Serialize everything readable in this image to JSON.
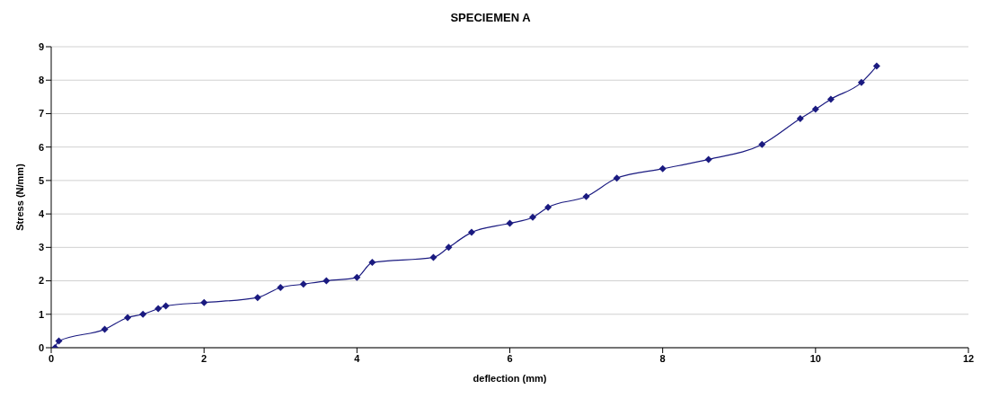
{
  "chart_data": {
    "type": "line",
    "title": "SPECIEMEN A",
    "xlabel": "deflection (mm)",
    "ylabel": "Stress (N/mm)",
    "x": [
      0.05,
      0.1,
      0.7,
      1.0,
      1.2,
      1.4,
      1.5,
      2.0,
      2.7,
      3.0,
      3.3,
      3.6,
      4.0,
      4.2,
      5.0,
      5.2,
      5.5,
      6.0,
      6.3,
      6.5,
      7.0,
      7.4,
      8.0,
      8.6,
      9.3,
      9.8,
      10.0,
      10.2,
      10.6,
      10.8
    ],
    "series": [
      {
        "color": "#1a1a80",
        "values": [
          0,
          0.2,
          0.55,
          0.9,
          1.0,
          1.17,
          1.25,
          1.35,
          1.5,
          1.8,
          1.9,
          2.0,
          2.1,
          2.55,
          2.7,
          3.0,
          3.45,
          3.72,
          3.9,
          4.2,
          4.52,
          5.07,
          5.35,
          5.63,
          6.08,
          6.85,
          7.13,
          7.43,
          7.93,
          8.42
        ]
      }
    ],
    "xlim": [
      0,
      12
    ],
    "xticks": [
      0,
      2,
      4,
      6,
      8,
      10,
      12
    ],
    "ylim": [
      0,
      9
    ],
    "yticks": [
      0,
      1,
      2,
      3,
      4,
      5,
      6,
      7,
      8,
      9
    ],
    "grid": "y",
    "marker": "diamond",
    "line_style": "solid",
    "legend": false
  }
}
